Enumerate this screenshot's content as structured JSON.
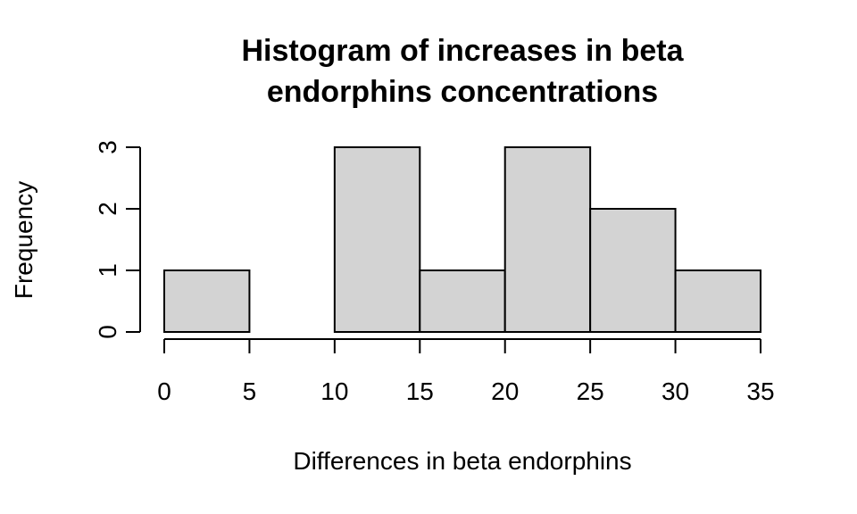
{
  "chart_data": {
    "type": "bar",
    "title_lines": [
      "Histogram of increases in beta",
      "endorphins concentrations"
    ],
    "xlabel": "Differences in beta endorphins",
    "ylabel": "Frequency",
    "bins": [
      [
        0,
        5
      ],
      [
        5,
        10
      ],
      [
        10,
        15
      ],
      [
        15,
        20
      ],
      [
        20,
        25
      ],
      [
        25,
        30
      ],
      [
        30,
        35
      ]
    ],
    "values": [
      1,
      0,
      3,
      1,
      3,
      2,
      1
    ],
    "xlim": [
      0,
      35
    ],
    "ylim": [
      0,
      3
    ],
    "xticks": [
      "0",
      "5",
      "10",
      "15",
      "20",
      "25",
      "30",
      "35"
    ],
    "yticks": [
      "0",
      "1",
      "2",
      "3"
    ],
    "bar_color": "#d3d3d3",
    "grid": false,
    "legend": "none"
  }
}
